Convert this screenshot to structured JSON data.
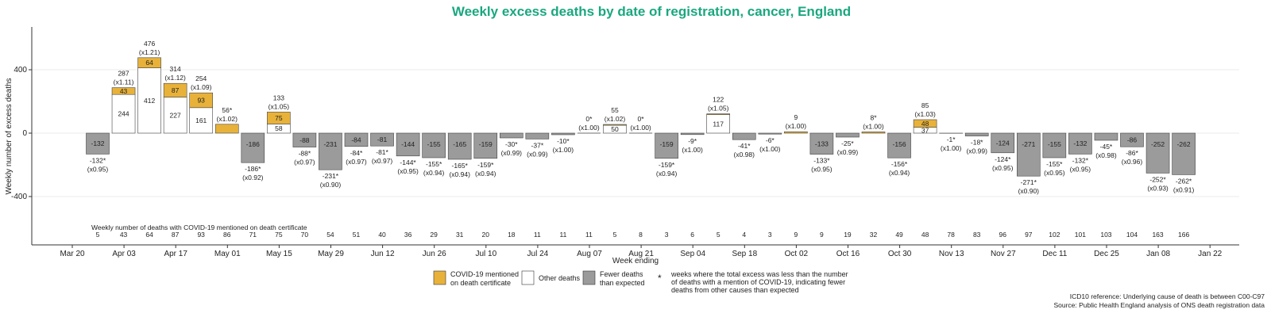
{
  "chart_data": {
    "type": "bar",
    "title": "Weekly excess deaths by date of registration, cancer, England",
    "ylabel": "Weekly number of excess deaths",
    "xlabel": "Week ending",
    "ylim": [
      -700,
      700
    ],
    "yticks": [
      -400,
      0,
      400
    ],
    "xtick_labels": [
      "Mar 20",
      "Apr 03",
      "Apr 17",
      "May 01",
      "May 15",
      "May 29",
      "Jun 12",
      "Jun 26",
      "Jul 10",
      "Jul 24",
      "Aug 07",
      "Aug 21",
      "Sep 04",
      "Sep 18",
      "Oct 02",
      "Oct 16",
      "Oct 30",
      "Nov 13",
      "Nov 27",
      "Dec 11",
      "Dec 25",
      "Jan 08",
      "Jan 22"
    ],
    "covid_row_label": "Weekly number of deaths with COVID-19 mentioned on death certificate",
    "weeks": [
      {
        "covid_part": 0,
        "other_part": 0,
        "fewer": -132,
        "top": "",
        "ratio": "",
        "bottom": "-132*",
        "bottom_ratio": "(x0.95)",
        "covid_count": "5"
      },
      {
        "covid_part": 43,
        "other_part": 244,
        "fewer": 0,
        "top": "287",
        "ratio": "(x1.11)",
        "bottom": "",
        "bottom_ratio": "",
        "covid_count": "43"
      },
      {
        "covid_part": 64,
        "other_part": 412,
        "fewer": 0,
        "top": "476",
        "ratio": "(x1.21)",
        "bottom": "",
        "bottom_ratio": "",
        "covid_count": "64"
      },
      {
        "covid_part": 87,
        "other_part": 227,
        "fewer": 0,
        "top": "314",
        "ratio": "(x1.12)",
        "bottom": "",
        "bottom_ratio": "",
        "covid_count": "87"
      },
      {
        "covid_part": 93,
        "other_part": 161,
        "fewer": 0,
        "top": "254",
        "ratio": "(x1.09)",
        "bottom": "",
        "bottom_ratio": "",
        "covid_count": "93"
      },
      {
        "covid_part": 56,
        "other_part": 0,
        "fewer": 0,
        "top": "56*",
        "ratio": "(x1.02)",
        "bottom": "",
        "bottom_ratio": "",
        "covid_count": "86"
      },
      {
        "covid_part": 0,
        "other_part": 0,
        "fewer": -186,
        "top": "",
        "ratio": "",
        "bottom": "-186*",
        "bottom_ratio": "(x0.92)",
        "covid_count": "71"
      },
      {
        "covid_part": 75,
        "other_part": 58,
        "fewer": 0,
        "top": "133",
        "ratio": "(x1.05)",
        "bottom": "",
        "bottom_ratio": "",
        "covid_count": "75"
      },
      {
        "covid_part": 0,
        "other_part": 0,
        "fewer": -88,
        "top": "",
        "ratio": "",
        "bottom": "-88*",
        "bottom_ratio": "(x0.97)",
        "covid_count": "70"
      },
      {
        "covid_part": 0,
        "other_part": 0,
        "fewer": -231,
        "top": "",
        "ratio": "",
        "bottom": "-231*",
        "bottom_ratio": "(x0.90)",
        "covid_count": "54"
      },
      {
        "covid_part": 0,
        "other_part": 0,
        "fewer": -84,
        "top": "",
        "ratio": "",
        "bottom": "-84*",
        "bottom_ratio": "(x0.97)",
        "covid_count": "51"
      },
      {
        "covid_part": 0,
        "other_part": 0,
        "fewer": -81,
        "top": "",
        "ratio": "",
        "bottom": "-81*",
        "bottom_ratio": "(x0.97)",
        "covid_count": "40"
      },
      {
        "covid_part": 0,
        "other_part": 0,
        "fewer": -144,
        "top": "",
        "ratio": "",
        "bottom": "-144*",
        "bottom_ratio": "(x0.95)",
        "covid_count": "36"
      },
      {
        "covid_part": 0,
        "other_part": 0,
        "fewer": -155,
        "top": "",
        "ratio": "",
        "bottom": "-155*",
        "bottom_ratio": "(x0.94)",
        "covid_count": "29"
      },
      {
        "covid_part": 0,
        "other_part": 0,
        "fewer": -165,
        "top": "",
        "ratio": "",
        "bottom": "-165*",
        "bottom_ratio": "(x0.94)",
        "covid_count": "31"
      },
      {
        "covid_part": 0,
        "other_part": 0,
        "fewer": -159,
        "top": "",
        "ratio": "",
        "bottom": "-159*",
        "bottom_ratio": "(x0.94)",
        "covid_count": "20"
      },
      {
        "covid_part": 0,
        "other_part": 0,
        "fewer": -30,
        "top": "",
        "ratio": "",
        "bottom": "-30*",
        "bottom_ratio": "(x0.99)",
        "covid_count": "18"
      },
      {
        "covid_part": 0,
        "other_part": 0,
        "fewer": -37,
        "top": "",
        "ratio": "",
        "bottom": "-37*",
        "bottom_ratio": "(x0.99)",
        "covid_count": "11"
      },
      {
        "covid_part": 0,
        "other_part": 0,
        "fewer": -10,
        "top": "",
        "ratio": "",
        "bottom": "-10*",
        "bottom_ratio": "(x1.00)",
        "covid_count": "11"
      },
      {
        "covid_part": 0,
        "other_part": 0,
        "fewer": 0,
        "top": "0*",
        "ratio": "(x1.00)",
        "bottom": "",
        "bottom_ratio": "",
        "covid_count": "11"
      },
      {
        "covid_part": 5,
        "other_part": 50,
        "fewer": 0,
        "top": "55",
        "ratio": "(x1.02)",
        "bottom": "",
        "bottom_ratio": "",
        "covid_count": "5"
      },
      {
        "covid_part": 0,
        "other_part": 0,
        "fewer": 0,
        "top": "0*",
        "ratio": "(x1.00)",
        "bottom": "",
        "bottom_ratio": "",
        "covid_count": "8"
      },
      {
        "covid_part": 0,
        "other_part": 0,
        "fewer": -159,
        "top": "",
        "ratio": "",
        "bottom": "-159*",
        "bottom_ratio": "(x0.94)",
        "covid_count": "3"
      },
      {
        "covid_part": 0,
        "other_part": 0,
        "fewer": -9,
        "top": "",
        "ratio": "",
        "bottom": "-9*",
        "bottom_ratio": "(x1.00)",
        "covid_count": "6"
      },
      {
        "covid_part": 5,
        "other_part": 117,
        "fewer": 0,
        "top": "122",
        "ratio": "(x1.05)",
        "bottom": "",
        "bottom_ratio": "",
        "covid_count": "5"
      },
      {
        "covid_part": 0,
        "other_part": 0,
        "fewer": -41,
        "top": "",
        "ratio": "",
        "bottom": "-41*",
        "bottom_ratio": "(x0.98)",
        "covid_count": "4"
      },
      {
        "covid_part": 0,
        "other_part": 0,
        "fewer": -6,
        "top": "",
        "ratio": "",
        "bottom": "-6*",
        "bottom_ratio": "(x1.00)",
        "covid_count": "3"
      },
      {
        "covid_part": 9,
        "other_part": 0,
        "fewer": 0,
        "top": "9",
        "ratio": "(x1.00)",
        "bottom": "",
        "bottom_ratio": "",
        "covid_count": "9"
      },
      {
        "covid_part": 0,
        "other_part": 0,
        "fewer": -133,
        "top": "",
        "ratio": "",
        "bottom": "-133*",
        "bottom_ratio": "(x0.95)",
        "covid_count": "9"
      },
      {
        "covid_part": 0,
        "other_part": 0,
        "fewer": -25,
        "top": "",
        "ratio": "",
        "bottom": "-25*",
        "bottom_ratio": "(x0.99)",
        "covid_count": "19"
      },
      {
        "covid_part": 8,
        "other_part": 0,
        "fewer": 0,
        "top": "8*",
        "ratio": "(x1.00)",
        "bottom": "",
        "bottom_ratio": "",
        "covid_count": "32"
      },
      {
        "covid_part": 0,
        "other_part": 0,
        "fewer": -156,
        "top": "",
        "ratio": "",
        "bottom": "-156*",
        "bottom_ratio": "(x0.94)",
        "covid_count": "49"
      },
      {
        "covid_part": 48,
        "other_part": 37,
        "fewer": 0,
        "top": "85",
        "ratio": "(x1.03)",
        "bottom": "",
        "bottom_ratio": "",
        "covid_count": "48"
      },
      {
        "covid_part": 0,
        "other_part": 0,
        "fewer": -1,
        "top": "",
        "ratio": "",
        "bottom": "-1*",
        "bottom_ratio": "(x1.00)",
        "covid_count": "78"
      },
      {
        "covid_part": 0,
        "other_part": 0,
        "fewer": -18,
        "top": "",
        "ratio": "",
        "bottom": "-18*",
        "bottom_ratio": "(x0.99)",
        "covid_count": "83"
      },
      {
        "covid_part": 0,
        "other_part": 0,
        "fewer": -124,
        "top": "",
        "ratio": "",
        "bottom": "-124*",
        "bottom_ratio": "(x0.95)",
        "covid_count": "96"
      },
      {
        "covid_part": 0,
        "other_part": 0,
        "fewer": -271,
        "top": "",
        "ratio": "",
        "bottom": "-271*",
        "bottom_ratio": "(x0.90)",
        "covid_count": "97"
      },
      {
        "covid_part": 0,
        "other_part": 0,
        "fewer": -155,
        "top": "",
        "ratio": "",
        "bottom": "-155*",
        "bottom_ratio": "(x0.95)",
        "covid_count": "102"
      },
      {
        "covid_part": 0,
        "other_part": 0,
        "fewer": -132,
        "top": "",
        "ratio": "",
        "bottom": "-132*",
        "bottom_ratio": "(x0.95)",
        "covid_count": "101"
      },
      {
        "covid_part": 0,
        "other_part": 0,
        "fewer": -45,
        "top": "",
        "ratio": "",
        "bottom": "-45*",
        "bottom_ratio": "(x0.98)",
        "covid_count": "103"
      },
      {
        "covid_part": 0,
        "other_part": 0,
        "fewer": -86,
        "top": "",
        "ratio": "",
        "bottom": "-86*",
        "bottom_ratio": "(x0.96)",
        "covid_count": "104"
      },
      {
        "covid_part": 0,
        "other_part": 0,
        "fewer": -252,
        "top": "",
        "ratio": "",
        "bottom": "-252*",
        "bottom_ratio": "(x0.93)",
        "covid_count": "163"
      },
      {
        "covid_part": 0,
        "other_part": 0,
        "fewer": -262,
        "top": "",
        "ratio": "",
        "bottom": "-262*",
        "bottom_ratio": "(x0.91)",
        "covid_count": "166"
      }
    ],
    "legend": {
      "covid_line1": "COVID-19 mentioned",
      "covid_line2": "on death certificate",
      "other": "Other deaths",
      "fewer_line1": "Fewer deaths",
      "fewer_line2": "than expected",
      "star_symbol": "*",
      "star_line1": "weeks where the total excess was less than the number",
      "star_line2": "of deaths with a mention of COVID-19, indicating fewer",
      "star_line3": "deaths from other causes than expected"
    },
    "colors": {
      "title": "#1aa77f",
      "covid": "#e8b23a",
      "other": "#ffffff",
      "fewer": "#9b9b9b",
      "grid": "#ebebeb"
    }
  },
  "footer": {
    "line1": "ICD10 reference: Underlying cause of death is between C00-C97",
    "line2": "Source: Public Health England analysis of ONS death registration data"
  }
}
